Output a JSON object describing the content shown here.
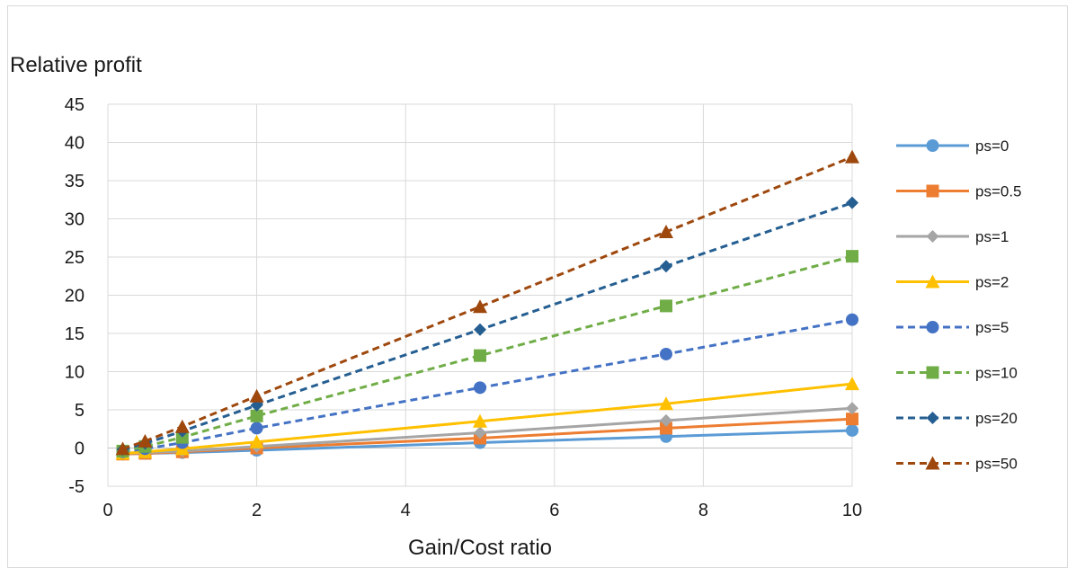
{
  "chart_data": {
    "type": "line",
    "title": "",
    "xlabel": "Gain/Cost ratio",
    "ylabel": "Relative profit",
    "xlim": [
      0,
      10
    ],
    "ylim": [
      -5,
      45
    ],
    "x_ticks": [
      0,
      2,
      4,
      6,
      8,
      10
    ],
    "y_ticks": [
      -5,
      0,
      5,
      10,
      15,
      20,
      25,
      30,
      35,
      40,
      45
    ],
    "grid": "vertical and horizontal",
    "legend_position": "right",
    "x": [
      0.2,
      0.5,
      1,
      2,
      5,
      7.5,
      10
    ],
    "series": [
      {
        "name": "ps=0",
        "color": "#5b9bd5",
        "marker": "circle",
        "dash": "solid",
        "values": [
          -0.8,
          -0.7,
          -0.6,
          -0.3,
          0.7,
          1.5,
          2.3
        ]
      },
      {
        "name": "ps=0.5",
        "color": "#ed7d31",
        "marker": "square",
        "dash": "solid",
        "values": [
          -0.8,
          -0.7,
          -0.5,
          0.0,
          1.3,
          2.6,
          3.8
        ]
      },
      {
        "name": "ps=1",
        "color": "#a5a5a5",
        "marker": "diamond",
        "dash": "solid",
        "values": [
          -0.7,
          -0.6,
          -0.4,
          0.2,
          2.0,
          3.6,
          5.2
        ]
      },
      {
        "name": "ps=2",
        "color": "#ffc000",
        "marker": "triangle",
        "dash": "solid",
        "values": [
          -0.7,
          -0.5,
          -0.1,
          0.8,
          3.5,
          5.8,
          8.4
        ]
      },
      {
        "name": "ps=5",
        "color": "#4472c4",
        "marker": "circle",
        "dash": "dashed",
        "values": [
          -0.5,
          -0.1,
          0.7,
          2.6,
          7.9,
          12.3,
          16.8
        ]
      },
      {
        "name": "ps=10",
        "color": "#70ad47",
        "marker": "square",
        "dash": "dashed",
        "values": [
          -0.4,
          0.2,
          1.4,
          4.2,
          12.1,
          18.6,
          25.1
        ]
      },
      {
        "name": "ps=20",
        "color": "#255e91",
        "marker": "diamond",
        "dash": "dashed",
        "values": [
          -0.2,
          0.6,
          2.2,
          5.6,
          15.5,
          23.8,
          32.1
        ]
      },
      {
        "name": "ps=50",
        "color": "#9e480e",
        "marker": "triangle",
        "dash": "dashed",
        "values": [
          -0.1,
          0.9,
          2.8,
          6.8,
          18.5,
          28.3,
          38.1
        ]
      }
    ]
  }
}
